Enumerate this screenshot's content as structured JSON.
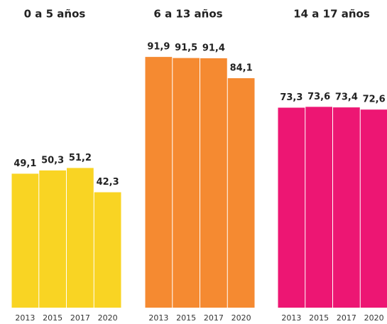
{
  "chart_data": [
    {
      "type": "bar",
      "title": "0 a 5 años",
      "categories": [
        "2013",
        "2015",
        "2017",
        "2020"
      ],
      "values": [
        49.1,
        50.3,
        51.2,
        42.3
      ],
      "value_labels": [
        "49,1",
        "50,3",
        "51,2",
        "42,3"
      ],
      "color": "#f9d423",
      "ylim": [
        0,
        100
      ]
    },
    {
      "type": "bar",
      "title": "6 a 13 años",
      "categories": [
        "2013",
        "2015",
        "2017",
        "2020"
      ],
      "values": [
        91.9,
        91.5,
        91.4,
        84.1
      ],
      "value_labels": [
        "91,9",
        "91,5",
        "91,4",
        "84,1"
      ],
      "color": "#f58a31",
      "ylim": [
        0,
        100
      ]
    },
    {
      "type": "bar",
      "title": "14 a 17 años",
      "categories": [
        "2013",
        "2015",
        "2017",
        "2020"
      ],
      "values": [
        73.3,
        73.6,
        73.4,
        72.6
      ],
      "value_labels": [
        "73,3",
        "73,6",
        "73,4",
        "72,6"
      ],
      "color": "#ed1673",
      "ylim": [
        0,
        100
      ]
    }
  ]
}
